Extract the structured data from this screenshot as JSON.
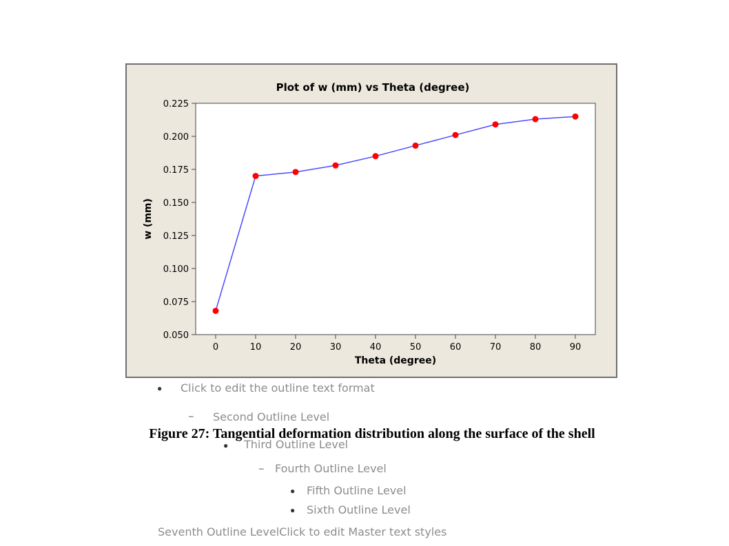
{
  "chart_data": {
    "type": "line",
    "title": "Plot of w (mm) vs Theta (degree)",
    "xlabel": "Theta (degree)",
    "ylabel": "w (mm)",
    "x": [
      0,
      10,
      20,
      30,
      40,
      50,
      60,
      70,
      80,
      90
    ],
    "y": [
      0.068,
      0.17,
      0.173,
      0.178,
      0.185,
      0.193,
      0.201,
      0.209,
      0.213,
      0.215
    ],
    "xticks": [
      "0",
      "10",
      "20",
      "30",
      "40",
      "50",
      "60",
      "70",
      "80",
      "90"
    ],
    "yticks": [
      "0.050",
      "0.075",
      "0.100",
      "0.125",
      "0.150",
      "0.175",
      "0.200",
      "0.225"
    ],
    "xlim": [
      -5,
      95
    ],
    "ylim": [
      0.05,
      0.225
    ],
    "grid": false,
    "line_color": "#4a4aff",
    "marker_color": "#ff0000",
    "frame_background": "#ece8dd",
    "plot_background": "#ffffff"
  },
  "outline": {
    "level1": "Click to edit the outline text format",
    "level2": "Second Outline Level",
    "level3": "Third Outline Level",
    "level4": "Fourth Outline Level",
    "level5": "Fifth Outline Level",
    "level6": "Sixth Outline Level",
    "level7": "Seventh Outline LevelClick to edit Master text styles"
  },
  "caption": "Figure 27: Tangential deformation distribution along the surface of the shell"
}
